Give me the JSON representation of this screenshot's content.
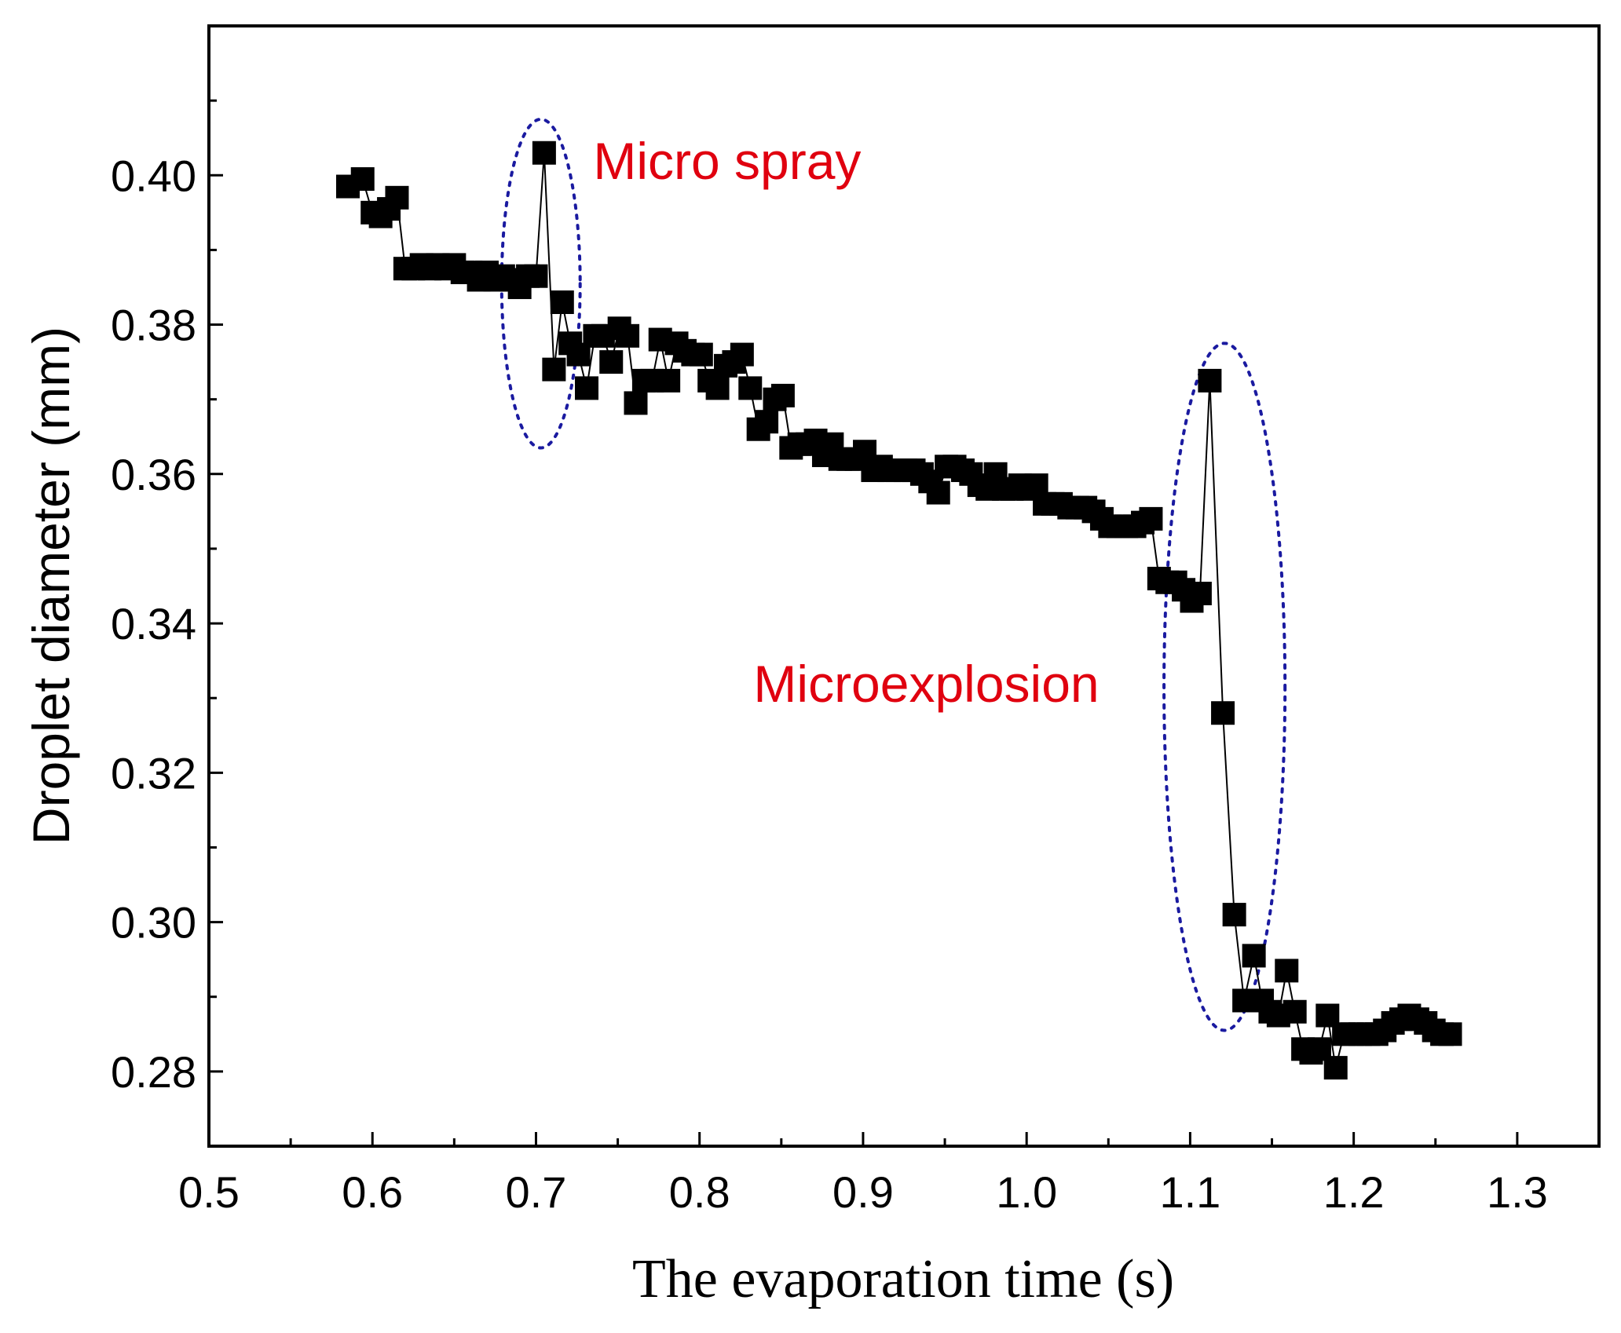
{
  "chart_data": {
    "type": "line",
    "title": "",
    "xlabel": "The evaporation time (s)",
    "ylabel": "Droplet diameter (mm)",
    "xlim": [
      0.5,
      1.35
    ],
    "ylim": [
      0.27,
      0.42
    ],
    "x_ticks": [
      0.5,
      0.6,
      0.7,
      0.8,
      0.9,
      1.0,
      1.1,
      1.2,
      1.3
    ],
    "x_tick_labels": [
      "0.5",
      "0.6",
      "0.7",
      "0.8",
      "0.9",
      "1.0",
      "1.1",
      "1.2",
      "1.3"
    ],
    "y_ticks": [
      0.28,
      0.3,
      0.32,
      0.34,
      0.36,
      0.38,
      0.4
    ],
    "y_tick_labels": [
      "0.28",
      "0.30",
      "0.32",
      "0.34",
      "0.36",
      "0.38",
      "0.40"
    ],
    "grid": false,
    "series": [
      {
        "name": "droplet diameter",
        "marker": "square",
        "color": "#000000",
        "x": [
          0.585,
          0.594,
          0.6,
          0.605,
          0.61,
          0.615,
          0.62,
          0.625,
          0.63,
          0.635,
          0.64,
          0.645,
          0.65,
          0.655,
          0.66,
          0.665,
          0.67,
          0.675,
          0.68,
          0.685,
          0.69,
          0.695,
          0.7,
          0.705,
          0.711,
          0.716,
          0.721,
          0.726,
          0.731,
          0.736,
          0.741,
          0.746,
          0.751,
          0.756,
          0.761,
          0.766,
          0.771,
          0.776,
          0.781,
          0.786,
          0.791,
          0.796,
          0.801,
          0.806,
          0.811,
          0.816,
          0.821,
          0.826,
          0.831,
          0.836,
          0.841,
          0.846,
          0.851,
          0.856,
          0.861,
          0.866,
          0.871,
          0.876,
          0.881,
          0.886,
          0.891,
          0.896,
          0.901,
          0.906,
          0.911,
          0.916,
          0.921,
          0.926,
          0.931,
          0.936,
          0.941,
          0.946,
          0.951,
          0.956,
          0.961,
          0.966,
          0.971,
          0.976,
          0.981,
          0.986,
          0.991,
          0.996,
          1.001,
          1.006,
          1.011,
          1.016,
          1.021,
          1.026,
          1.031,
          1.036,
          1.041,
          1.046,
          1.051,
          1.056,
          1.061,
          1.066,
          1.071,
          1.076,
          1.081,
          1.086,
          1.091,
          1.096,
          1.101,
          1.106,
          1.112,
          1.12,
          1.127,
          1.133,
          1.139,
          1.144,
          1.149,
          1.154,
          1.159,
          1.164,
          1.169,
          1.174,
          1.179,
          1.184,
          1.189,
          1.194,
          1.199,
          1.204,
          1.209,
          1.214,
          1.219,
          1.224,
          1.229,
          1.234,
          1.239,
          1.244,
          1.249,
          1.254,
          1.259
        ],
        "values": [
          0.3985,
          0.3995,
          0.395,
          0.3945,
          0.3955,
          0.397,
          0.3875,
          0.3875,
          0.388,
          0.3875,
          0.388,
          0.3875,
          0.388,
          0.387,
          0.387,
          0.386,
          0.387,
          0.386,
          0.3865,
          0.386,
          0.385,
          0.3865,
          0.3865,
          0.403,
          0.374,
          0.383,
          0.3775,
          0.376,
          0.3715,
          0.3785,
          0.3785,
          0.375,
          0.3795,
          0.3785,
          0.3695,
          0.3725,
          0.3725,
          0.378,
          0.3725,
          0.3775,
          0.3765,
          0.376,
          0.376,
          0.3725,
          0.3715,
          0.3745,
          0.375,
          0.376,
          0.3715,
          0.366,
          0.367,
          0.37,
          0.3705,
          0.3635,
          0.364,
          0.364,
          0.3645,
          0.3625,
          0.364,
          0.362,
          0.362,
          0.362,
          0.363,
          0.3605,
          0.361,
          0.3605,
          0.3605,
          0.3605,
          0.3605,
          0.36,
          0.359,
          0.3575,
          0.361,
          0.361,
          0.3605,
          0.36,
          0.3585,
          0.358,
          0.36,
          0.358,
          0.358,
          0.3585,
          0.358,
          0.3585,
          0.356,
          0.356,
          0.356,
          0.3555,
          0.3555,
          0.3555,
          0.355,
          0.354,
          0.353,
          0.353,
          0.353,
          0.353,
          0.3535,
          0.354,
          0.346,
          0.3455,
          0.3455,
          0.3445,
          0.343,
          0.344,
          0.3725,
          0.328,
          0.301,
          0.2895,
          0.2955,
          0.2895,
          0.288,
          0.2875,
          0.2935,
          0.288,
          0.283,
          0.2825,
          0.283,
          0.2875,
          0.2805,
          0.285,
          0.285,
          0.285,
          0.285,
          0.285,
          0.2855,
          0.2865,
          0.287,
          0.2875,
          0.287,
          0.2865,
          0.2855,
          0.285,
          0.285
        ]
      }
    ],
    "annotations": [
      {
        "text": "Micro spray",
        "color": "#e0000f",
        "x": 0.735,
        "y": 0.3995
      },
      {
        "text": "Microexplosion",
        "color": "#e0000f",
        "x": 0.833,
        "y": 0.3295
      }
    ],
    "highlight_ellipses": [
      {
        "label": "micro-spray-region",
        "cx": 0.703,
        "cy": 0.3855,
        "rx": 0.024,
        "ry": 0.022,
        "color": "#1a1aa0"
      },
      {
        "label": "microexplosion-region",
        "cx": 1.121,
        "cy": 0.3315,
        "rx": 0.037,
        "ry": 0.046,
        "color": "#1a1aa0"
      }
    ]
  }
}
